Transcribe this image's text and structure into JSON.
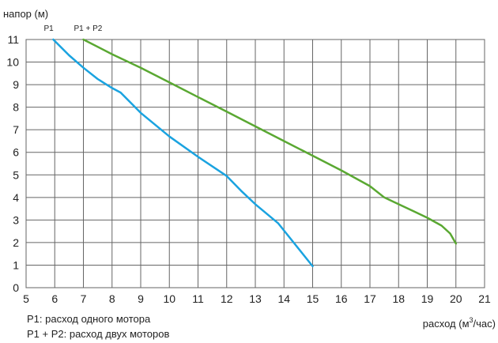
{
  "chart_data": {
    "type": "line",
    "ylabel": "напор (м)",
    "xlabel_prefix": "расход (м",
    "xlabel_sup": "3",
    "xlabel_suffix": "/час)",
    "xlim": [
      5,
      21
    ],
    "ylim": [
      0,
      11
    ],
    "xticks": [
      5,
      6,
      7,
      8,
      9,
      10,
      11,
      12,
      13,
      14,
      15,
      16,
      17,
      18,
      19,
      20,
      21
    ],
    "yticks": [
      0,
      1,
      2,
      3,
      4,
      5,
      6,
      7,
      8,
      9,
      10,
      11
    ],
    "grid": true,
    "series": [
      {
        "name": "P1",
        "color": "#1aa3e0",
        "points": [
          [
            5.95,
            11
          ],
          [
            6.5,
            10.3
          ],
          [
            7.0,
            9.75
          ],
          [
            7.5,
            9.25
          ],
          [
            8.0,
            8.85
          ],
          [
            8.3,
            8.65
          ],
          [
            9.0,
            7.75
          ],
          [
            10.0,
            6.7
          ],
          [
            11.0,
            5.8
          ],
          [
            12.0,
            4.95
          ],
          [
            12.5,
            4.3
          ],
          [
            13.0,
            3.7
          ],
          [
            13.8,
            2.85
          ],
          [
            15.0,
            0.95
          ]
        ]
      },
      {
        "name": "P1 + P2",
        "color": "#5aa832",
        "points": [
          [
            7.0,
            11
          ],
          [
            8.0,
            10.35
          ],
          [
            9.0,
            9.75
          ],
          [
            10.0,
            9.1
          ],
          [
            11.0,
            8.45
          ],
          [
            12.0,
            7.8
          ],
          [
            13.0,
            7.15
          ],
          [
            14.0,
            6.5
          ],
          [
            15.0,
            5.85
          ],
          [
            16.0,
            5.2
          ],
          [
            17.0,
            4.5
          ],
          [
            17.5,
            4.0
          ],
          [
            18.0,
            3.7
          ],
          [
            18.5,
            3.4
          ],
          [
            19.0,
            3.1
          ],
          [
            19.5,
            2.75
          ],
          [
            19.8,
            2.4
          ],
          [
            20.0,
            1.95
          ]
        ]
      }
    ],
    "notes": [
      "P1: расход одного мотора",
      "P1 + P2: расход двух моторов"
    ]
  }
}
